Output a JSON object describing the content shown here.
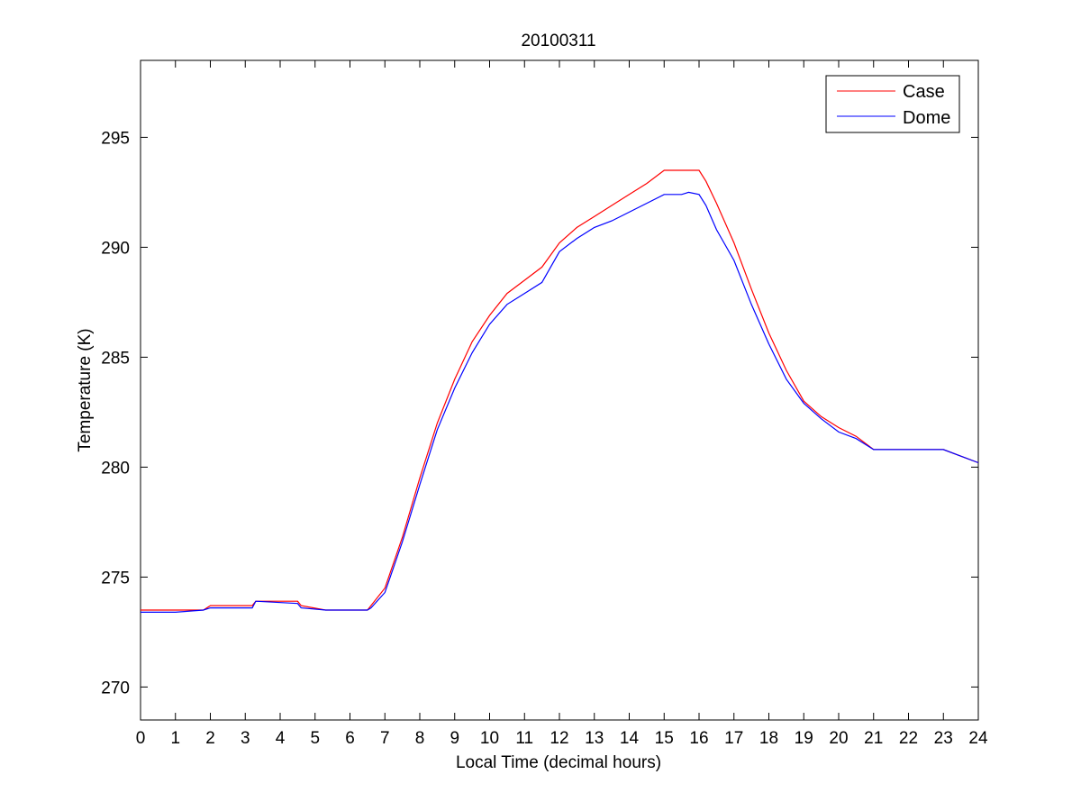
{
  "chart_data": {
    "type": "line",
    "title": "20100311",
    "xlabel": "Local Time (decimal hours)",
    "ylabel": "Temperature (K)",
    "xlim": [
      0,
      24
    ],
    "ylim": [
      268.5,
      298.5
    ],
    "xticks": [
      0,
      1,
      2,
      3,
      4,
      5,
      6,
      7,
      8,
      9,
      10,
      11,
      12,
      13,
      14,
      15,
      16,
      17,
      18,
      19,
      20,
      21,
      22,
      23,
      24
    ],
    "yticks": [
      270,
      275,
      280,
      285,
      290,
      295
    ],
    "grid": false,
    "legend_position": "top-right",
    "series": [
      {
        "name": "Case",
        "color": "#ff0000",
        "x": [
          0,
          1.8,
          2.0,
          3.2,
          3.3,
          4.5,
          4.6,
          5.3,
          6.5,
          6.6,
          7.0,
          7.5,
          8.0,
          8.5,
          9.0,
          9.5,
          10.0,
          10.5,
          11.0,
          11.5,
          12.0,
          12.5,
          13.0,
          13.5,
          14.0,
          14.5,
          15.0,
          16.0,
          16.2,
          16.5,
          17.0,
          17.5,
          18.0,
          18.5,
          19.0,
          19.5,
          20.0,
          20.5,
          21.0,
          22.0,
          23.0,
          23.5,
          24.0
        ],
        "y": [
          273.5,
          273.5,
          273.7,
          273.7,
          273.9,
          273.9,
          273.7,
          273.5,
          273.5,
          273.7,
          274.5,
          276.8,
          279.5,
          282.0,
          284.0,
          285.7,
          286.9,
          287.9,
          288.5,
          289.1,
          290.2,
          290.9,
          291.4,
          291.9,
          292.4,
          292.9,
          293.5,
          293.5,
          293.0,
          292.0,
          290.2,
          288.1,
          286.1,
          284.4,
          283.0,
          282.3,
          281.8,
          281.4,
          280.8,
          280.8,
          280.8,
          280.5,
          280.2
        ]
      },
      {
        "name": "Dome",
        "color": "#0000ff",
        "x": [
          0,
          1.0,
          1.8,
          2.0,
          3.2,
          3.3,
          4.5,
          4.6,
          5.3,
          6.5,
          6.6,
          7.0,
          7.5,
          8.0,
          8.5,
          9.0,
          9.5,
          10.0,
          10.5,
          11.0,
          11.5,
          12.0,
          12.5,
          13.0,
          13.5,
          14.0,
          14.5,
          15.0,
          15.5,
          15.7,
          16.0,
          16.2,
          16.5,
          17.0,
          17.5,
          18.0,
          18.5,
          19.0,
          19.5,
          20.0,
          20.5,
          21.0,
          22.0,
          23.0,
          23.5,
          24.0
        ],
        "y": [
          273.4,
          273.4,
          273.5,
          273.6,
          273.6,
          273.9,
          273.8,
          273.6,
          273.5,
          273.5,
          273.6,
          274.3,
          276.6,
          279.2,
          281.7,
          283.6,
          285.2,
          286.5,
          287.4,
          287.9,
          288.4,
          289.8,
          290.4,
          290.9,
          291.2,
          291.6,
          292.0,
          292.4,
          292.4,
          292.5,
          292.4,
          291.9,
          290.8,
          289.4,
          287.4,
          285.6,
          284.0,
          282.9,
          282.2,
          281.6,
          281.3,
          280.8,
          280.8,
          280.8,
          280.5,
          280.2
        ]
      }
    ]
  }
}
